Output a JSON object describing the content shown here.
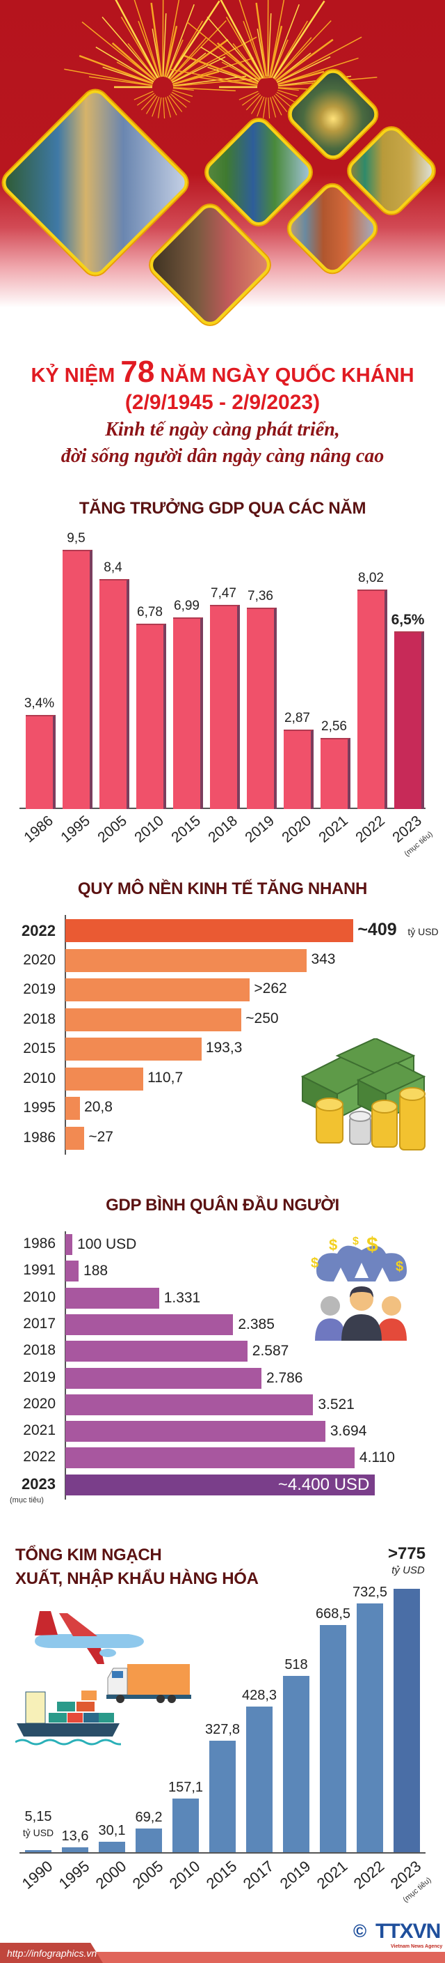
{
  "header": {
    "title_prefix": "KỶ NIỆM",
    "title_number": "78",
    "title_suffix": "NĂM NGÀY QUỐC KHÁNH",
    "dates": "(2/9/1945 - 2/9/2023)",
    "subtitle_line1": "Kinh tế ngày càng phát triển,",
    "subtitle_line2": "đời sống người dân ngày càng nâng cao",
    "photos": [
      "city-lake-photo",
      "river-bridge-photo",
      "factory-welding-photo",
      "rice-harvest-photo",
      "seaport-photo",
      "skyscraper-photo"
    ]
  },
  "colors": {
    "title_red": "#e01b22",
    "section_title": "#5b1212",
    "gdp_growth_bar": "#f0516a",
    "gdp_growth_target": "#c72a58",
    "economy_bar": "#f28a52",
    "economy_highlight": "#ea5a33",
    "per_capita_bar": "#a8579f",
    "per_capita_target": "#7a3e8a",
    "trade_bar": "#5b87b9",
    "trade_target": "#4a6ea6"
  },
  "chart_data": [
    {
      "type": "bar",
      "title": "TĂNG TRƯỞNG GDP QUA CÁC NĂM",
      "categories": [
        "1986",
        "1995",
        "2005",
        "2010",
        "2015",
        "2018",
        "2019",
        "2020",
        "2021",
        "2022",
        "2023"
      ],
      "values": [
        3.4,
        9.5,
        8.4,
        6.78,
        6.99,
        7.47,
        7.36,
        2.87,
        2.56,
        8.02,
        6.5
      ],
      "labels": [
        "3,4%",
        "9,5",
        "8,4",
        "6,78",
        "6,99",
        "7,47",
        "7,36",
        "2,87",
        "2,56",
        "8,02",
        "6,5%"
      ],
      "target_note": "(mục tiêu)",
      "ylim": [
        0,
        10
      ]
    },
    {
      "type": "bar",
      "orientation": "horizontal",
      "title": "QUY MÔ NỀN KINH TẾ TĂNG NHANH",
      "categories": [
        "2022",
        "2020",
        "2019",
        "2018",
        "2015",
        "2010",
        "1995",
        "1986"
      ],
      "values": [
        409,
        343,
        262,
        250,
        193.3,
        110.7,
        20.8,
        27
      ],
      "labels": [
        "~409",
        "343",
        ">262",
        "~250",
        "193,3",
        "110,7",
        "20,8",
        "~27"
      ],
      "unit": "tỷ USD"
    },
    {
      "type": "bar",
      "orientation": "horizontal",
      "title": "GDP BÌNH QUÂN ĐẦU NGƯỜI",
      "categories": [
        "1986",
        "1991",
        "2010",
        "2017",
        "2018",
        "2019",
        "2020",
        "2021",
        "2022",
        "2023"
      ],
      "values": [
        100,
        188,
        1331,
        2385,
        2587,
        2786,
        3521,
        3694,
        4110,
        4400
      ],
      "labels": [
        "100 USD",
        "188",
        "1.331",
        "2.385",
        "2.587",
        "2.786",
        "3.521",
        "3.694",
        "4.110",
        "~4.400 USD"
      ],
      "target_note": "(mục tiêu)"
    },
    {
      "type": "bar",
      "title_line1": "TỔNG KIM NGẠCH",
      "title_line2": "XUẤT, NHẬP KHẨU HÀNG HÓA",
      "categories": [
        "1990",
        "1995",
        "2000",
        "2005",
        "2010",
        "2015",
        "2017",
        "2019",
        "2021",
        "2022",
        "2023"
      ],
      "values": [
        5.15,
        13.6,
        30.1,
        69.2,
        157.1,
        327.8,
        428.3,
        518,
        668.5,
        732.5,
        775
      ],
      "labels": [
        "5,15",
        "13,6",
        "30,1",
        "69,2",
        "157,1",
        "327,8",
        "428,3",
        "518",
        "668,5",
        "732,5",
        ">775"
      ],
      "unit": "tỷ USD",
      "target_note": "(mục tiêu)"
    }
  ],
  "footer": {
    "url": "http://infographics.vn",
    "copyright": "©",
    "logo": "TTXVN",
    "logo_caption": "Vietnam News Agency"
  }
}
